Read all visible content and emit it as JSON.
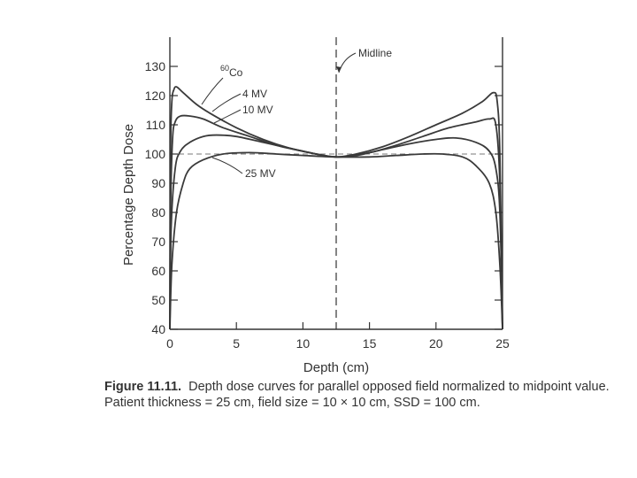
{
  "chart_data": {
    "type": "line",
    "title": "",
    "xlabel": "Depth (cm)",
    "ylabel": "Percentage Depth Dose",
    "xlim": [
      0,
      25
    ],
    "ylim": [
      40,
      135
    ],
    "xticks": [
      0,
      5,
      10,
      15,
      20,
      25
    ],
    "yticks": [
      40,
      50,
      60,
      70,
      80,
      90,
      100,
      110,
      120,
      130
    ],
    "midline": {
      "x": 12.5,
      "label": "Midline"
    },
    "reference_line": {
      "y": 100
    },
    "series": [
      {
        "name": "60Co",
        "label_base": "Co",
        "label_sup": "60",
        "points": [
          [
            0,
            40
          ],
          [
            0.05,
            100
          ],
          [
            0.15,
            118
          ],
          [
            0.3,
            122
          ],
          [
            0.5,
            123
          ],
          [
            1,
            121
          ],
          [
            2,
            117
          ],
          [
            3,
            114
          ],
          [
            5,
            109
          ],
          [
            7,
            105
          ],
          [
            9,
            102
          ],
          [
            11,
            100
          ],
          [
            12.5,
            99
          ],
          [
            14,
            100
          ],
          [
            16,
            102.5
          ],
          [
            18,
            106
          ],
          [
            20,
            110
          ],
          [
            22,
            114
          ],
          [
            23.5,
            118
          ],
          [
            24.3,
            121
          ],
          [
            24.6,
            118
          ],
          [
            24.8,
            100
          ],
          [
            25,
            40
          ]
        ]
      },
      {
        "name": "4 MV",
        "label": "4 MV",
        "points": [
          [
            0,
            40
          ],
          [
            0.05,
            80
          ],
          [
            0.2,
            105
          ],
          [
            0.4,
            111
          ],
          [
            0.8,
            113
          ],
          [
            1.5,
            113
          ],
          [
            2.5,
            112
          ],
          [
            4,
            109
          ],
          [
            6,
            106
          ],
          [
            8,
            103
          ],
          [
            10,
            101
          ],
          [
            12.5,
            99
          ],
          [
            15,
            100.5
          ],
          [
            17,
            103
          ],
          [
            19,
            106
          ],
          [
            21,
            109
          ],
          [
            23,
            111
          ],
          [
            24,
            112
          ],
          [
            24.5,
            110
          ],
          [
            24.8,
            90
          ],
          [
            25,
            40
          ]
        ]
      },
      {
        "name": "10 MV",
        "label": "10 MV",
        "points": [
          [
            0,
            40
          ],
          [
            0.1,
            75
          ],
          [
            0.4,
            95
          ],
          [
            0.8,
            101
          ],
          [
            1.5,
            104
          ],
          [
            2.5,
            106
          ],
          [
            3.5,
            106.5
          ],
          [
            5,
            106
          ],
          [
            7,
            104
          ],
          [
            9,
            102
          ],
          [
            11,
            100
          ],
          [
            12.5,
            99
          ],
          [
            14,
            99.5
          ],
          [
            16,
            101.5
          ],
          [
            18,
            103.5
          ],
          [
            20,
            105
          ],
          [
            21.5,
            105.5
          ],
          [
            23,
            104
          ],
          [
            24,
            101
          ],
          [
            24.5,
            95
          ],
          [
            24.8,
            80
          ],
          [
            25,
            40
          ]
        ]
      },
      {
        "name": "25 MV",
        "label": "25 MV",
        "points": [
          [
            0,
            40
          ],
          [
            0.15,
            62
          ],
          [
            0.5,
            80
          ],
          [
            1,
            90
          ],
          [
            1.5,
            95
          ],
          [
            2.5,
            98
          ],
          [
            4,
            100
          ],
          [
            6,
            100.5
          ],
          [
            8,
            100
          ],
          [
            10,
            99.5
          ],
          [
            12.5,
            99
          ],
          [
            15,
            99
          ],
          [
            17,
            99.5
          ],
          [
            19,
            100
          ],
          [
            20.5,
            100
          ],
          [
            22,
            99
          ],
          [
            23,
            96
          ],
          [
            24,
            90
          ],
          [
            24.5,
            80
          ],
          [
            24.8,
            62
          ],
          [
            25,
            40
          ]
        ]
      }
    ]
  },
  "caption": {
    "label": "Figure 11.11.",
    "line1": "Depth dose curves for parallel opposed field normalized to midpoint value.",
    "line2": "Patient thickness = 25 cm, field size = 10 × 10 cm, SSD = 100 cm."
  }
}
